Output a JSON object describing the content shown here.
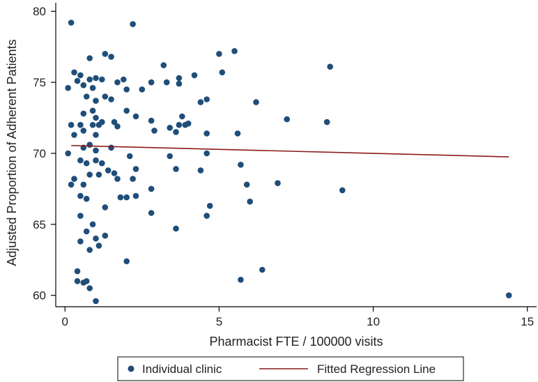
{
  "chart_data": {
    "type": "scatter",
    "title": "",
    "xlabel": "Pharmacist FTE / 100000 visits",
    "ylabel": "Adjusted Proportion of Adherent Patients",
    "xlim": [
      -0.3,
      15.3
    ],
    "ylim": [
      59.2,
      80.6
    ],
    "x_ticks": [
      0,
      5,
      10,
      15
    ],
    "y_ticks": [
      60,
      65,
      70,
      75,
      80
    ],
    "x_tick_labels": [
      "0",
      "5",
      "10",
      "15"
    ],
    "y_tick_labels": [
      "60",
      "65",
      "70",
      "75",
      "80"
    ],
    "grid": false,
    "legend_position": "bottom",
    "colors": {
      "points": "#1f4e79",
      "line": "#8b1a1a",
      "axis": "#000000"
    },
    "series": [
      {
        "name": "Individual clinic",
        "kind": "scatter",
        "points": [
          [
            0.2,
            79.2
          ],
          [
            2.2,
            79.1
          ],
          [
            1.3,
            77.0
          ],
          [
            1.5,
            76.8
          ],
          [
            0.8,
            76.7
          ],
          [
            5.0,
            77.0
          ],
          [
            5.5,
            77.2
          ],
          [
            3.2,
            76.2
          ],
          [
            8.6,
            76.1
          ],
          [
            0.3,
            75.7
          ],
          [
            0.5,
            75.5
          ],
          [
            1.0,
            75.3
          ],
          [
            1.2,
            75.2
          ],
          [
            1.9,
            75.2
          ],
          [
            2.8,
            75.0
          ],
          [
            3.7,
            75.3
          ],
          [
            4.2,
            75.5
          ],
          [
            5.1,
            75.7
          ],
          [
            0.1,
            74.6
          ],
          [
            0.6,
            74.8
          ],
          [
            0.9,
            74.6
          ],
          [
            1.7,
            75.0
          ],
          [
            2.5,
            74.5
          ],
          [
            3.3,
            75.0
          ],
          [
            0.4,
            75.1
          ],
          [
            0.8,
            75.2
          ],
          [
            3.7,
            74.9
          ],
          [
            1.0,
            73.7
          ],
          [
            1.3,
            74.0
          ],
          [
            1.5,
            73.8
          ],
          [
            0.7,
            74.0
          ],
          [
            2.0,
            74.5
          ],
          [
            4.4,
            73.6
          ],
          [
            4.6,
            73.8
          ],
          [
            6.2,
            73.6
          ],
          [
            0.9,
            73.0
          ],
          [
            1.0,
            72.5
          ],
          [
            1.2,
            72.2
          ],
          [
            0.6,
            72.8
          ],
          [
            2.0,
            73.0
          ],
          [
            2.3,
            72.6
          ],
          [
            2.8,
            72.3
          ],
          [
            3.8,
            72.6
          ],
          [
            0.2,
            72.0
          ],
          [
            0.5,
            72.0
          ],
          [
            0.9,
            72.0
          ],
          [
            1.1,
            72.0
          ],
          [
            1.6,
            72.2
          ],
          [
            1.7,
            71.9
          ],
          [
            2.9,
            71.6
          ],
          [
            3.4,
            71.8
          ],
          [
            3.7,
            72.0
          ],
          [
            3.9,
            72.0
          ],
          [
            4.0,
            72.1
          ],
          [
            7.2,
            72.4
          ],
          [
            8.5,
            72.2
          ],
          [
            0.3,
            71.3
          ],
          [
            0.6,
            71.6
          ],
          [
            1.0,
            71.3
          ],
          [
            3.6,
            71.5
          ],
          [
            4.6,
            71.4
          ],
          [
            5.6,
            71.4
          ],
          [
            0.1,
            70.0
          ],
          [
            0.6,
            70.4
          ],
          [
            0.8,
            70.6
          ],
          [
            1.0,
            70.2
          ],
          [
            1.5,
            70.4
          ],
          [
            2.1,
            69.8
          ],
          [
            3.4,
            69.8
          ],
          [
            4.6,
            70.0
          ],
          [
            0.5,
            69.5
          ],
          [
            0.7,
            69.3
          ],
          [
            1.0,
            69.5
          ],
          [
            1.2,
            69.3
          ],
          [
            1.4,
            68.8
          ],
          [
            1.6,
            68.6
          ],
          [
            2.3,
            68.9
          ],
          [
            3.6,
            68.9
          ],
          [
            4.4,
            68.8
          ],
          [
            5.7,
            69.2
          ],
          [
            0.3,
            68.2
          ],
          [
            0.6,
            67.8
          ],
          [
            0.8,
            68.5
          ],
          [
            1.1,
            68.5
          ],
          [
            1.7,
            68.2
          ],
          [
            2.2,
            68.2
          ],
          [
            5.9,
            67.8
          ],
          [
            6.9,
            67.9
          ],
          [
            0.2,
            67.8
          ],
          [
            0.5,
            67.0
          ],
          [
            0.7,
            66.8
          ],
          [
            1.8,
            66.9
          ],
          [
            2.0,
            66.9
          ],
          [
            2.3,
            67.0
          ],
          [
            2.8,
            67.5
          ],
          [
            9.0,
            67.4
          ],
          [
            4.7,
            66.3
          ],
          [
            6.0,
            66.6
          ],
          [
            0.5,
            65.6
          ],
          [
            0.9,
            65.0
          ],
          [
            1.3,
            66.2
          ],
          [
            2.8,
            65.8
          ],
          [
            4.6,
            65.6
          ],
          [
            0.7,
            64.5
          ],
          [
            1.0,
            64.0
          ],
          [
            1.3,
            64.2
          ],
          [
            3.6,
            64.7
          ],
          [
            0.5,
            63.8
          ],
          [
            0.8,
            63.2
          ],
          [
            1.1,
            63.5
          ],
          [
            2.0,
            62.4
          ],
          [
            0.4,
            61.7
          ],
          [
            0.6,
            60.9
          ],
          [
            0.7,
            61.0
          ],
          [
            0.8,
            60.5
          ],
          [
            0.4,
            61.0
          ],
          [
            5.7,
            61.1
          ],
          [
            6.4,
            61.8
          ],
          [
            14.4,
            60.0
          ],
          [
            1.0,
            59.6
          ]
        ]
      },
      {
        "name": "Fitted Regression Line",
        "kind": "line",
        "points": [
          [
            0.2,
            70.55
          ],
          [
            14.4,
            69.75
          ]
        ]
      }
    ]
  },
  "legend": {
    "items": [
      {
        "label": "Individual clinic",
        "marker": "dot"
      },
      {
        "label": "Fitted Regression Line",
        "marker": "line"
      }
    ]
  }
}
